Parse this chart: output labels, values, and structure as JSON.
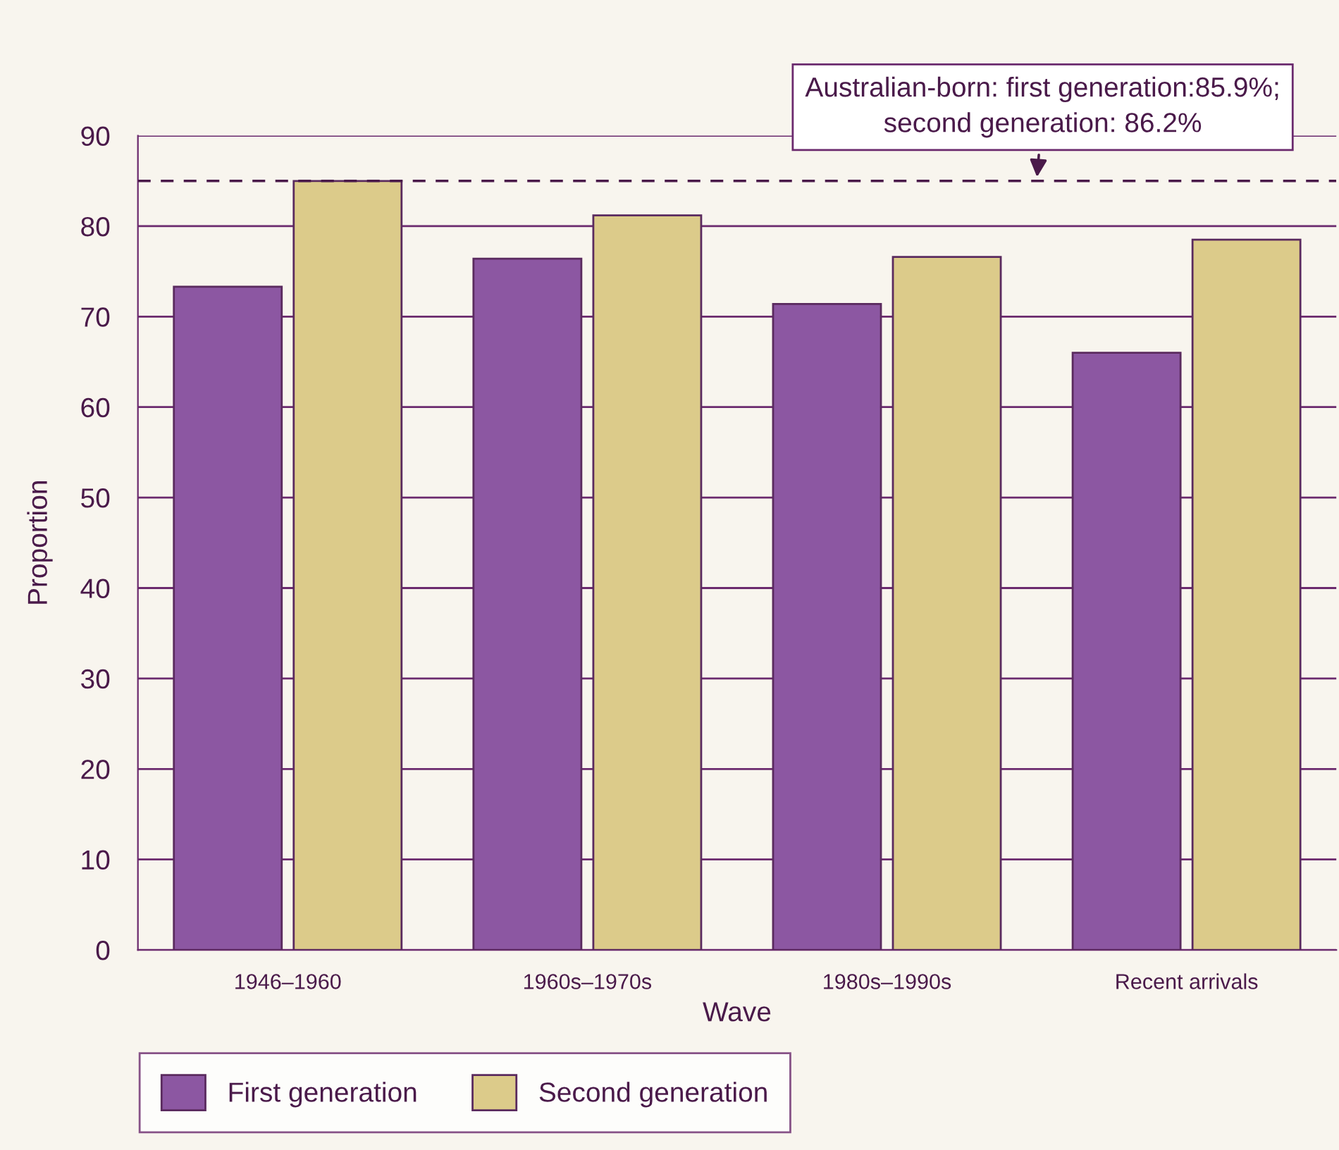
{
  "chart_data": {
    "type": "bar",
    "xlabel": "Wave",
    "ylabel": "Proportion",
    "categories": [
      "1946–1960",
      "1960s–1970s",
      "1980s–1990s",
      "Recent arrivals"
    ],
    "series": [
      {
        "name": "First generation",
        "color": "#8c57a2",
        "values": [
          73.3,
          76.4,
          71.4,
          66.0
        ]
      },
      {
        "name": "Second generation",
        "color": "#dccb8a",
        "values": [
          85.0,
          81.2,
          76.6,
          78.5
        ]
      }
    ],
    "ylim": [
      0,
      90
    ],
    "yticks": [
      0,
      10,
      20,
      30,
      40,
      50,
      60,
      70,
      80,
      90
    ],
    "grid": "y",
    "legend": "bottom",
    "ref_lines": [
      {
        "axis": "y",
        "value": 85.0,
        "line_style": "dashed",
        "color": "#4a1a4a"
      }
    ],
    "annotations": [
      {
        "text": "Australian-born: first generation:85.9%;\nsecond generation: 86.2%",
        "y": 85.0
      }
    ]
  }
}
